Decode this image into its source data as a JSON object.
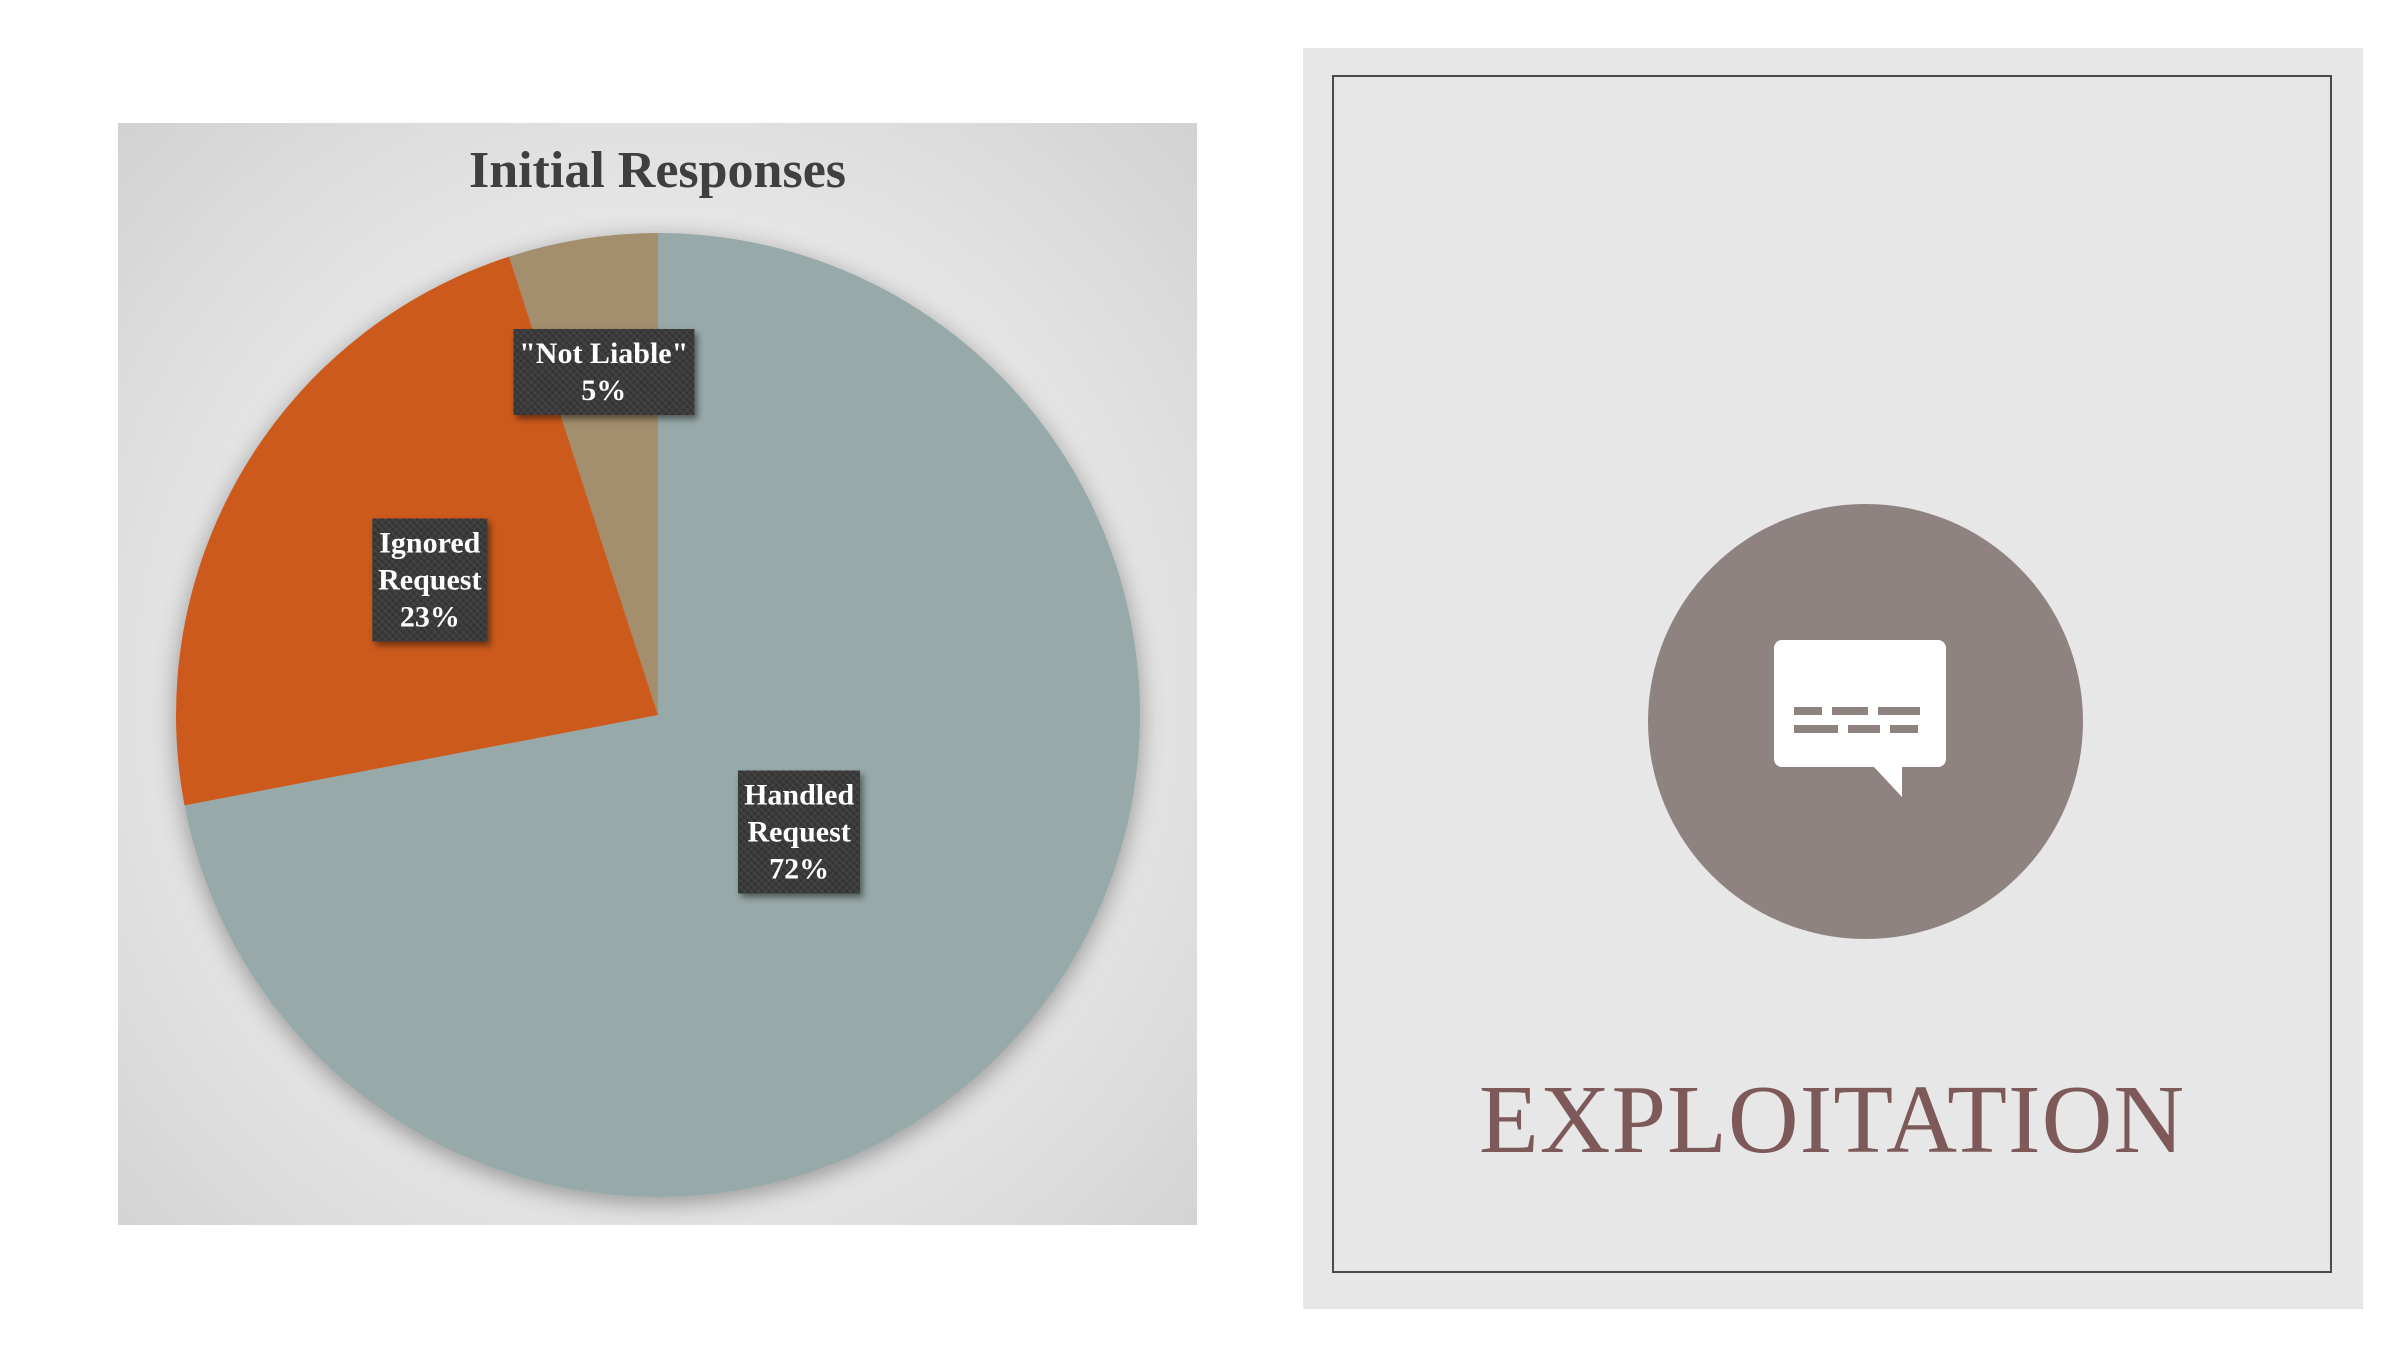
{
  "chart_data": {
    "type": "pie",
    "title": "Initial Responses",
    "slices": [
      {
        "label_lines": [
          "Handled",
          "Request"
        ],
        "value": 72,
        "display": "72%",
        "color": "#97a9a8"
      },
      {
        "label_lines": [
          "Ignored",
          "Request"
        ],
        "value": 23,
        "display": "23%",
        "color": "#cb5a1f"
      },
      {
        "label_lines": [
          "\"Not Liable\""
        ],
        "value": 5,
        "display": "5%",
        "color": "#a38e6e"
      }
    ],
    "start_angle_deg": 0,
    "direction": "clockwise",
    "legend": "none",
    "data_labels": "inside, dark boxes"
  },
  "card": {
    "icon": "speech-bubble-icon",
    "title": "EXPLOITATION",
    "title_color": "#7d5a59",
    "circle_color": "#8f8382"
  }
}
